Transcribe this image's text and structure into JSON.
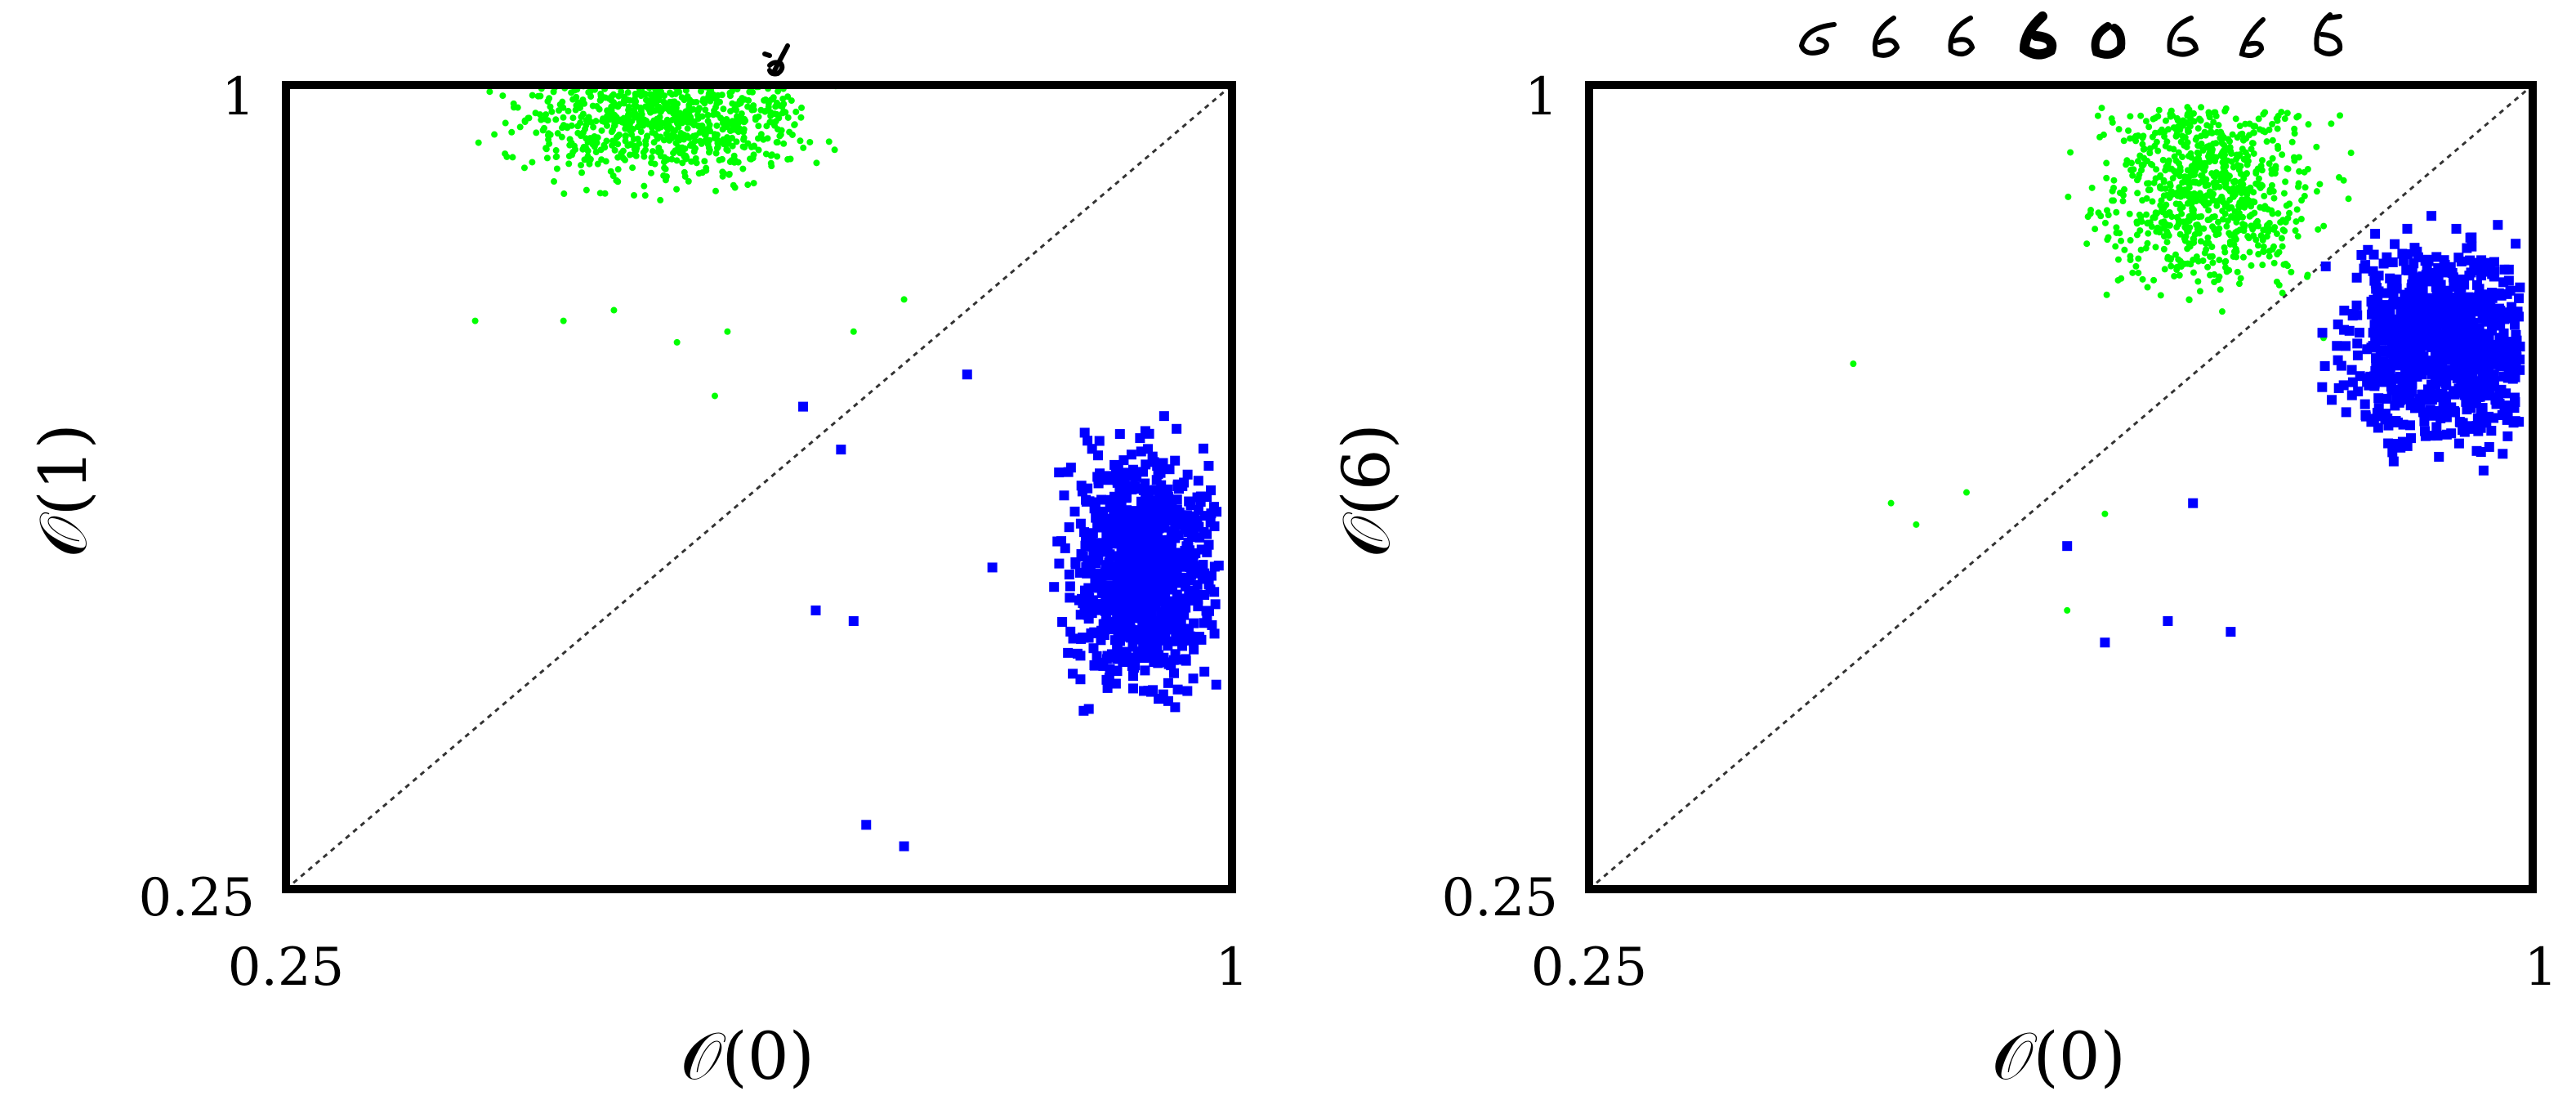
{
  "chart_data": [
    {
      "type": "scatter",
      "xlabel": "𝒪(0)",
      "ylabel": "𝒪(1)",
      "xlim": [
        0.25,
        1
      ],
      "ylim": [
        0.25,
        1
      ],
      "x_ticks": [
        "0.25",
        "1"
      ],
      "y_ticks": [
        "0.25",
        "1"
      ],
      "reference_line": "y = x (dashed)",
      "title_images": [
        "handwritten digit 1"
      ],
      "series": [
        {
          "color": "#00ff00",
          "marker": "small dot",
          "cluster": {
            "x_center": 0.55,
            "x_range": [
              0.35,
              0.88
            ],
            "y_center": 0.97,
            "y_range": [
              0.73,
              1.0
            ]
          },
          "outliers": [
            [
              0.4,
              0.78
            ],
            [
              0.47,
              0.78
            ],
            [
              0.51,
              0.79
            ],
            [
              0.56,
              0.76
            ],
            [
              0.6,
              0.77
            ],
            [
              0.74,
              0.8
            ],
            [
              0.7,
              0.77
            ],
            [
              0.59,
              0.71
            ]
          ],
          "values": [
            [
              0.4,
              0.78
            ],
            [
              0.47,
              0.78
            ],
            [
              0.51,
              0.79
            ],
            [
              0.56,
              0.76
            ],
            [
              0.6,
              0.77
            ],
            [
              0.74,
              0.8
            ],
            [
              0.7,
              0.77
            ],
            [
              0.59,
              0.71
            ]
          ]
        },
        {
          "color": "#0000ff",
          "marker": "square",
          "cluster": {
            "x_center": 0.93,
            "x_range": [
              0.72,
              0.99
            ],
            "y_center": 0.55,
            "y_range": [
              0.3,
              0.82
            ]
          },
          "outliers": [
            [
              0.66,
              0.7
            ],
            [
              0.69,
              0.66
            ],
            [
              0.67,
              0.51
            ],
            [
              0.7,
              0.5
            ],
            [
              0.71,
              0.31
            ],
            [
              0.74,
              0.29
            ],
            [
              0.79,
              0.73
            ],
            [
              0.81,
              0.55
            ]
          ],
          "values": [
            [
              0.66,
              0.7
            ],
            [
              0.69,
              0.66
            ],
            [
              0.67,
              0.51
            ],
            [
              0.7,
              0.5
            ],
            [
              0.71,
              0.31
            ],
            [
              0.74,
              0.29
            ],
            [
              0.79,
              0.73
            ],
            [
              0.81,
              0.55
            ]
          ]
        }
      ]
    },
    {
      "type": "scatter",
      "xlabel": "𝒪(0)",
      "ylabel": "𝒪(6)",
      "xlim": [
        0.25,
        1
      ],
      "ylim": [
        0.25,
        1
      ],
      "x_ticks": [
        "0.25",
        "1"
      ],
      "y_ticks": [
        "0.25",
        "1"
      ],
      "reference_line": "y = x (dashed)",
      "title_images": [
        "handwritten digit 6 samples (8)"
      ],
      "series": [
        {
          "color": "#00ff00",
          "marker": "small dot",
          "cluster": {
            "x_center": 0.74,
            "x_range": [
              0.46,
              0.86
            ],
            "y_center": 0.91,
            "y_range": [
              0.5,
              0.98
            ]
          },
          "outliers": [
            [
              0.46,
              0.74
            ],
            [
              0.49,
              0.61
            ],
            [
              0.51,
              0.59
            ],
            [
              0.55,
              0.62
            ],
            [
              0.63,
              0.51
            ],
            [
              0.66,
              0.6
            ]
          ],
          "values": [
            [
              0.46,
              0.74
            ],
            [
              0.49,
              0.61
            ],
            [
              0.51,
              0.59
            ],
            [
              0.55,
              0.62
            ],
            [
              0.63,
              0.51
            ],
            [
              0.66,
              0.6
            ]
          ]
        },
        {
          "color": "#0000ff",
          "marker": "square",
          "cluster": {
            "x_center": 0.93,
            "x_range": [
              0.63,
              0.99
            ],
            "y_center": 0.76,
            "y_range": [
              0.45,
              0.88
            ]
          },
          "outliers": [
            [
              0.63,
              0.57
            ],
            [
              0.66,
              0.48
            ],
            [
              0.71,
              0.5
            ],
            [
              0.76,
              0.49
            ],
            [
              0.73,
              0.61
            ]
          ],
          "values": [
            [
              0.63,
              0.57
            ],
            [
              0.66,
              0.48
            ],
            [
              0.71,
              0.5
            ],
            [
              0.76,
              0.49
            ],
            [
              0.73,
              0.61
            ]
          ]
        }
      ]
    }
  ]
}
